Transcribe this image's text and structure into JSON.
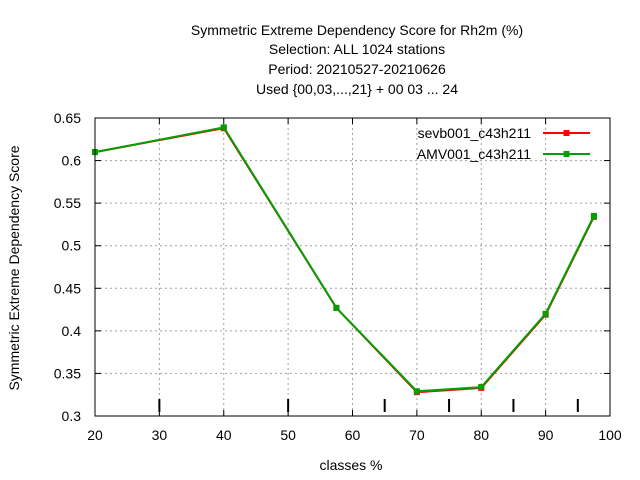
{
  "chart_data": {
    "type": "line",
    "title_lines": [
      "Symmetric Extreme Dependency Score  for Rh2m (%)",
      "Selection: ALL    1024 stations",
      "Period: 20210527-20210626",
      "Used {00,03,...,21} + 00 03 ... 24"
    ],
    "xlabel": "classes %",
    "ylabel": "Symmetric Extreme Dependency Score",
    "xlim": [
      20,
      100
    ],
    "ylim": [
      0.3,
      0.65
    ],
    "xticks": [
      20,
      30,
      40,
      50,
      60,
      70,
      80,
      90,
      100
    ],
    "yticks": [
      0.3,
      0.35,
      0.4,
      0.45,
      0.5,
      0.55,
      0.6,
      0.65
    ],
    "ytick_labels": [
      "0.3",
      "0.35",
      "0.4",
      "0.45",
      "0.5",
      "0.55",
      "0.6",
      "0.65"
    ],
    "grid": true,
    "legend_position": "top-right",
    "bottom_marks": [
      30,
      50,
      65,
      75,
      85,
      95
    ],
    "series": [
      {
        "name": "sevb001_c43h211",
        "color": "#ff0000",
        "x": [
          20,
          40,
          57.5,
          70,
          80,
          90,
          97.5
        ],
        "y": [
          0.61,
          0.638,
          0.427,
          0.328,
          0.333,
          0.419,
          0.534
        ]
      },
      {
        "name": "AMV001_c43h211",
        "color": "#00a000",
        "x": [
          20,
          40,
          57.5,
          70,
          80,
          90,
          97.5
        ],
        "y": [
          0.61,
          0.639,
          0.427,
          0.329,
          0.334,
          0.42,
          0.535
        ]
      }
    ]
  }
}
